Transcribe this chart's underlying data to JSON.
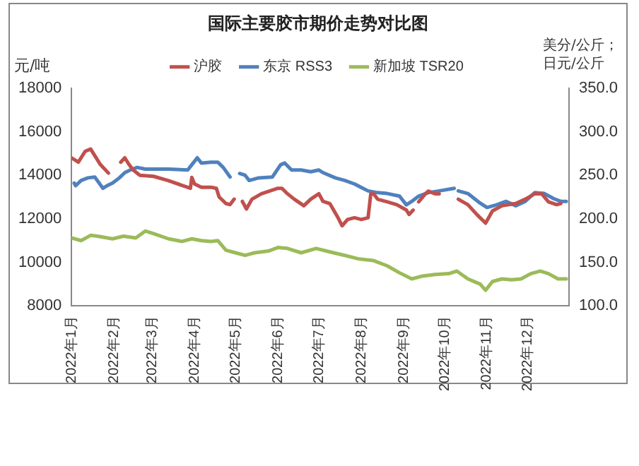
{
  "chart_data": {
    "type": "line",
    "title": "国际主要胶市期价走势对比图",
    "ylabel": "元/吨",
    "y2label": "美分/公斤；日元/公斤",
    "xlim": [
      "2022-01-01",
      "2022-12-31"
    ],
    "xticks": [
      {
        "value": "2022-01-01",
        "label": "2022年1月"
      },
      {
        "value": "2022-02-01",
        "label": "2022年2月"
      },
      {
        "value": "2022-03-01",
        "label": "2022年3月"
      },
      {
        "value": "2022-04-01",
        "label": "2022年4月"
      },
      {
        "value": "2022-05-01",
        "label": "2022年5月"
      },
      {
        "value": "2022-06-01",
        "label": "2022年6月"
      },
      {
        "value": "2022-07-01",
        "label": "2022年7月"
      },
      {
        "value": "2022-08-01",
        "label": "2022年8月"
      },
      {
        "value": "2022-09-01",
        "label": "2022年9月"
      },
      {
        "value": "2022-10-01",
        "label": "2022年10月"
      },
      {
        "value": "2022-11-01",
        "label": "2022年11月"
      },
      {
        "value": "2022-12-01",
        "label": "2022年12月"
      }
    ],
    "ylim": [
      8000,
      18000
    ],
    "yticks": [
      8000,
      10000,
      12000,
      14000,
      16000,
      18000
    ],
    "y2lim": [
      100,
      350
    ],
    "y2ticks": [
      {
        "value": 100,
        "label": "100.0"
      },
      {
        "value": 150,
        "label": "150.0"
      },
      {
        "value": 200,
        "label": "200.0"
      },
      {
        "value": 250,
        "label": "250.0"
      },
      {
        "value": 300,
        "label": "300.0"
      },
      {
        "value": 350,
        "label": "350.0"
      }
    ],
    "grid": false,
    "legend": "top",
    "marker": "none",
    "line_style": "solid",
    "series": [
      {
        "name": "沪胶",
        "color": "#c0504d",
        "axis": "y",
        "x": [
          "2022-01-01",
          "2022-01-06",
          "2022-01-11",
          "2022-01-15",
          "2022-01-18",
          "2022-01-22",
          "2022-01-28",
          "2022-02-01",
          "2022-02-06",
          "2022-02-09",
          "2022-02-12",
          "2022-02-15",
          "2022-02-20",
          "2022-03-02",
          "2022-03-13",
          "2022-03-29",
          "2022-03-30",
          "2022-04-01",
          "2022-04-06",
          "2022-04-13",
          "2022-04-17",
          "2022-04-19",
          "2022-04-24",
          "2022-04-27",
          "2022-04-30",
          "2022-05-03",
          "2022-05-06",
          "2022-05-09",
          "2022-05-13",
          "2022-05-20",
          "2022-05-27",
          "2022-06-01",
          "2022-06-04",
          "2022-06-08",
          "2022-06-13",
          "2022-06-20",
          "2022-06-25",
          "2022-07-01",
          "2022-07-04",
          "2022-07-09",
          "2022-07-15",
          "2022-07-18",
          "2022-07-22",
          "2022-07-27",
          "2022-08-01",
          "2022-08-06",
          "2022-08-08",
          "2022-08-10",
          "2022-08-13",
          "2022-08-20",
          "2022-08-27",
          "2022-09-03",
          "2022-09-05",
          "2022-09-08",
          "2022-09-10",
          "2022-09-12",
          "2022-09-17",
          "2022-09-19",
          "2022-09-24",
          "2022-09-27",
          "2022-10-04",
          "2022-10-11",
          "2022-10-18",
          "2022-10-25",
          "2022-10-31",
          "2022-11-05",
          "2022-11-12",
          "2022-11-22",
          "2022-11-29",
          "2022-12-06",
          "2022-12-11",
          "2022-12-16",
          "2022-12-22",
          "2022-12-25"
        ],
        "values": [
          14800,
          14600,
          15100,
          15200,
          14900,
          14500,
          14100,
          null,
          14600,
          14800,
          14500,
          14250,
          14000,
          13950,
          13750,
          13400,
          13900,
          13600,
          13450,
          13450,
          13400,
          13000,
          12700,
          12650,
          12900,
          null,
          12800,
          12450,
          12900,
          13150,
          13300,
          13400,
          13400,
          13150,
          12900,
          12600,
          12900,
          13150,
          12800,
          12700,
          12050,
          11680,
          11970,
          12050,
          11970,
          12050,
          13150,
          13150,
          12900,
          12780,
          12650,
          12400,
          12200,
          12400,
          null,
          12780,
          13150,
          13270,
          13150,
          13150,
          null,
          12900,
          12650,
          12170,
          11800,
          12360,
          12600,
          12700,
          12900,
          13150,
          13150,
          12780,
          12650,
          12700
        ]
      },
      {
        "name": "东京 RSS3",
        "color": "#4f81bd",
        "axis": "y2",
        "x": [
          "2022-01-03",
          "2022-01-04",
          "2022-01-08",
          "2022-01-13",
          "2022-01-18",
          "2022-01-24",
          "2022-01-27",
          "2022-01-31",
          "2022-02-05",
          "2022-02-09",
          "2022-02-13",
          "2022-02-18",
          "2022-02-24",
          "2022-03-13",
          "2022-03-27",
          "2022-03-30",
          "2022-04-03",
          "2022-04-06",
          "2022-04-13",
          "2022-04-18",
          "2022-04-22",
          "2022-04-27",
          "2022-05-01",
          "2022-05-04",
          "2022-05-08",
          "2022-05-11",
          "2022-05-18",
          "2022-05-28",
          "2022-06-03",
          "2022-06-06",
          "2022-06-11",
          "2022-06-18",
          "2022-06-25",
          "2022-07-01",
          "2022-07-04",
          "2022-07-13",
          "2022-07-20",
          "2022-07-27",
          "2022-08-01",
          "2022-08-06",
          "2022-08-13",
          "2022-08-20",
          "2022-08-29",
          "2022-09-03",
          "2022-09-07",
          "2022-09-12",
          "2022-09-19",
          "2022-09-27",
          "2022-10-08",
          "2022-10-09",
          "2022-10-11",
          "2022-10-18",
          "2022-10-27",
          "2022-11-01",
          "2022-11-08",
          "2022-11-15",
          "2022-11-22",
          "2022-11-29",
          "2022-12-06",
          "2022-12-13",
          "2022-12-20",
          "2022-12-25",
          "2022-12-29"
        ],
        "values": [
          241,
          238,
          244,
          247,
          248,
          235,
          238,
          241,
          247,
          253,
          256,
          259,
          257,
          257,
          256,
          262,
          270,
          264,
          265,
          265,
          259,
          248,
          null,
          252,
          250,
          244,
          247,
          248,
          262,
          264,
          256,
          256,
          254,
          256,
          253,
          247,
          244,
          240,
          236,
          232,
          230,
          229,
          226,
          216,
          220,
          226,
          230,
          232,
          235,
          null,
          232,
          229,
          218,
          213,
          216,
          220,
          215,
          220,
          230,
          229,
          223,
          220,
          220
        ]
      },
      {
        "name": "新加坡 TSR20",
        "color": "#9bbb59",
        "axis": "y2",
        "x": [
          "2022-01-01",
          "2022-01-08",
          "2022-01-15",
          "2022-01-20",
          "2022-01-31",
          "2022-02-08",
          "2022-02-17",
          "2022-02-24",
          "2022-03-02",
          "2022-03-13",
          "2022-03-23",
          "2022-03-30",
          "2022-04-06",
          "2022-04-13",
          "2022-04-18",
          "2022-04-24",
          "2022-05-01",
          "2022-05-08",
          "2022-05-15",
          "2022-05-25",
          "2022-06-01",
          "2022-06-08",
          "2022-06-18",
          "2022-06-29",
          "2022-07-09",
          "2022-07-20",
          "2022-07-30",
          "2022-08-10",
          "2022-08-20",
          "2022-08-29",
          "2022-09-07",
          "2022-09-14",
          "2022-09-24",
          "2022-10-04",
          "2022-10-10",
          "2022-10-18",
          "2022-10-27",
          "2022-10-31",
          "2022-11-05",
          "2022-11-12",
          "2022-11-19",
          "2022-11-26",
          "2022-12-03",
          "2022-12-10",
          "2022-12-16",
          "2022-12-23",
          "2022-12-29"
        ],
        "values": [
          178,
          175,
          181,
          180,
          177,
          180,
          178,
          186,
          183,
          177,
          174,
          177,
          175,
          174,
          175,
          164,
          161,
          158,
          161,
          163,
          167,
          166,
          161,
          166,
          162,
          158,
          154,
          152,
          146,
          138,
          131,
          134,
          136,
          137,
          140,
          131,
          125,
          118,
          128,
          131,
          130,
          131,
          137,
          140,
          137,
          131,
          131
        ]
      }
    ]
  }
}
